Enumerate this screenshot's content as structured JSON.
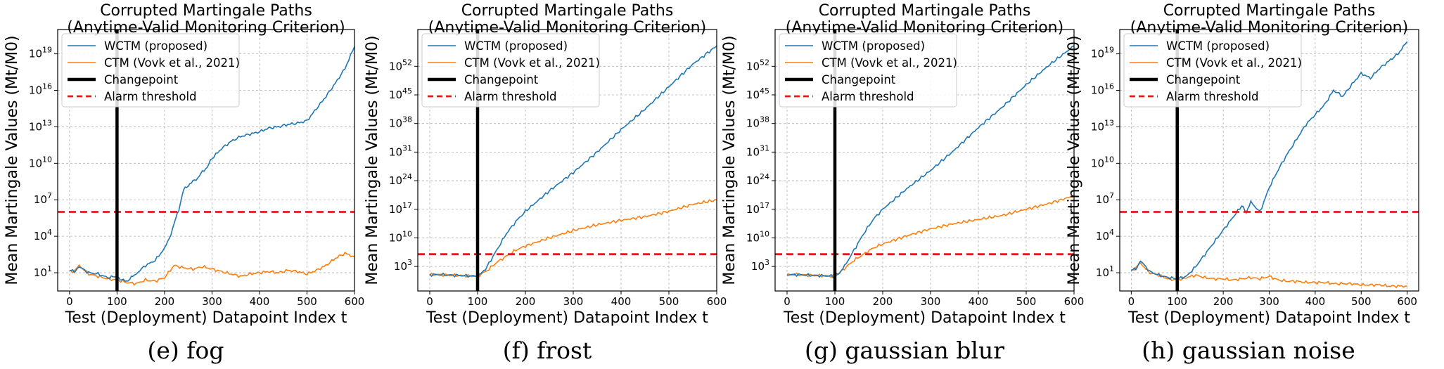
{
  "colors": {
    "wctm": "#1f77b4",
    "ctm": "#ff7f0e",
    "changepoint": "#000000",
    "alarm": "#e31a1c",
    "grid": "#b0b0b0"
  },
  "legend": {
    "wctm": "WCTM (proposed)",
    "ctm": "CTM (Vovk et al., 2021)",
    "changepoint": "Changepoint",
    "alarm": "Alarm threshold"
  },
  "chart_data": [
    {
      "type": "line",
      "caption": "(e) fog",
      "title_line1": "Corrupted Martingale Paths",
      "title_line2": "(Anytime-Valid Monitoring Criterion)",
      "xlabel": "Test (Deployment) Datapoint Index t",
      "ylabel": "Mean Martingale Values (Mt/M0)",
      "log_y": true,
      "grid": true,
      "legend_position": "upper left",
      "xlim": [
        -25,
        600
      ],
      "ylim_log10": [
        -0.5,
        21
      ],
      "xticks": [
        0,
        100,
        200,
        300,
        400,
        500,
        600
      ],
      "yticks_exp": [
        1,
        4,
        7,
        10,
        13,
        16,
        19
      ],
      "changepoint_x": 100,
      "alarm_threshold_log10": 6,
      "series": [
        {
          "name": "WCTM (proposed)",
          "x": [
            0,
            10,
            20,
            40,
            60,
            80,
            100,
            110,
            120,
            130,
            140,
            160,
            180,
            200,
            210,
            220,
            230,
            240,
            250,
            260,
            270,
            280,
            290,
            300,
            320,
            340,
            360,
            380,
            400,
            420,
            440,
            460,
            480,
            500,
            520,
            540,
            560,
            580,
            600
          ],
          "log10": [
            1.2,
            1.1,
            1.5,
            1.0,
            0.9,
            0.6,
            0.7,
            0.4,
            0.3,
            0.6,
            0.9,
            1.6,
            2.0,
            3.0,
            3.8,
            5.0,
            6.2,
            7.8,
            8.2,
            8.5,
            8.8,
            9.3,
            9.7,
            10.4,
            11.2,
            11.8,
            12.2,
            12.4,
            12.6,
            12.9,
            13.0,
            13.2,
            13.3,
            13.5,
            14.5,
            15.5,
            16.6,
            17.8,
            19.6
          ]
        },
        {
          "name": "CTM (Vovk et al., 2021)",
          "x": [
            0,
            10,
            20,
            40,
            60,
            80,
            100,
            120,
            140,
            160,
            180,
            200,
            220,
            240,
            260,
            280,
            300,
            320,
            340,
            360,
            380,
            400,
            420,
            440,
            460,
            480,
            500,
            520,
            540,
            560,
            580,
            600
          ],
          "log10": [
            1.2,
            1.1,
            1.6,
            0.9,
            0.7,
            0.5,
            0.4,
            0.2,
            0.1,
            0.4,
            0.3,
            0.6,
            1.6,
            1.4,
            1.3,
            1.5,
            1.3,
            1.1,
            0.9,
            0.7,
            0.9,
            1.0,
            1.1,
            1.0,
            1.2,
            1.1,
            0.9,
            1.2,
            1.6,
            2.2,
            2.6,
            2.3
          ]
        }
      ]
    },
    {
      "type": "line",
      "caption": "(f) frost",
      "title_line1": "Corrupted Martingale Paths",
      "title_line2": "(Anytime-Valid Monitoring Criterion)",
      "xlabel": "Test (Deployment) Datapoint Index t",
      "ylabel": "Mean Martingale Values (Mt/M0)",
      "log_y": true,
      "grid": true,
      "legend_position": "upper left",
      "xlim": [
        -25,
        600
      ],
      "ylim_log10": [
        -3,
        61
      ],
      "xticks": [
        0,
        100,
        200,
        300,
        400,
        500,
        600
      ],
      "yticks_exp": [
        3,
        10,
        17,
        24,
        31,
        38,
        45,
        52
      ],
      "changepoint_x": 100,
      "alarm_threshold_log10": 6,
      "series": [
        {
          "name": "WCTM (proposed)",
          "x": [
            0,
            20,
            40,
            60,
            80,
            100,
            110,
            120,
            140,
            160,
            180,
            200,
            250,
            300,
            350,
            400,
            450,
            500,
            550,
            600
          ],
          "log10": [
            1.0,
            1.0,
            0.9,
            0.8,
            0.7,
            0.6,
            1.5,
            3.0,
            7.0,
            11.0,
            14.0,
            16.5,
            21.5,
            26.0,
            31.0,
            36.5,
            41.5,
            47.0,
            52.5,
            57.0
          ]
        },
        {
          "name": "CTM (Vovk et al., 2021)",
          "x": [
            0,
            20,
            40,
            60,
            80,
            100,
            120,
            140,
            160,
            180,
            200,
            250,
            300,
            350,
            400,
            450,
            500,
            550,
            600
          ],
          "log10": [
            1.0,
            1.0,
            0.9,
            0.8,
            0.7,
            0.6,
            2.0,
            4.0,
            5.5,
            7.0,
            8.0,
            10.0,
            11.8,
            13.2,
            14.3,
            15.2,
            16.5,
            18.2,
            19.3
          ]
        }
      ]
    },
    {
      "type": "line",
      "caption": "(g) gaussian blur",
      "title_line1": "Corrupted Martingale Paths",
      "title_line2": "(Anytime-Valid Monitoring Criterion)",
      "xlabel": "Test (Deployment) Datapoint Index t",
      "ylabel": "Mean Martingale Values (Mt/M0)",
      "log_y": true,
      "grid": true,
      "legend_position": "upper left",
      "xlim": [
        -25,
        600
      ],
      "ylim_log10": [
        -3,
        61
      ],
      "xticks": [
        0,
        100,
        200,
        300,
        400,
        500,
        600
      ],
      "yticks_exp": [
        3,
        10,
        17,
        24,
        31,
        38,
        45,
        52
      ],
      "changepoint_x": 100,
      "alarm_threshold_log10": 6,
      "series": [
        {
          "name": "WCTM (proposed)",
          "x": [
            0,
            20,
            40,
            60,
            80,
            100,
            110,
            120,
            140,
            160,
            180,
            200,
            250,
            300,
            350,
            400,
            450,
            500,
            550,
            600
          ],
          "log10": [
            1.0,
            1.0,
            0.9,
            0.8,
            0.7,
            0.6,
            1.5,
            3.0,
            7.0,
            11.0,
            14.5,
            17.0,
            22.0,
            26.5,
            31.5,
            37.0,
            42.0,
            47.5,
            52.5,
            57.0
          ]
        },
        {
          "name": "CTM (Vovk et al., 2021)",
          "x": [
            0,
            20,
            40,
            60,
            80,
            100,
            120,
            140,
            160,
            180,
            200,
            250,
            300,
            350,
            400,
            450,
            500,
            550,
            600
          ],
          "log10": [
            1.0,
            1.0,
            0.9,
            0.8,
            0.7,
            0.6,
            2.5,
            4.5,
            6.0,
            7.5,
            8.5,
            10.5,
            12.2,
            13.5,
            14.5,
            15.5,
            17.0,
            18.5,
            20.3
          ]
        }
      ]
    },
    {
      "type": "line",
      "caption": "(h) gaussian noise",
      "title_line1": "Corrupted Martingale Paths",
      "title_line2": "(Anytime-Valid Monitoring Criterion)",
      "xlabel": "Test (Deployment) Datapoint Index t",
      "ylabel": "Mean Martingale Values (Mt/M0)",
      "log_y": true,
      "grid": true,
      "legend_position": "upper left",
      "xlim": [
        -25,
        625
      ],
      "ylim_log10": [
        -0.5,
        21
      ],
      "xticks": [
        0,
        100,
        200,
        300,
        400,
        500,
        600
      ],
      "yticks_exp": [
        1,
        4,
        7,
        10,
        13,
        16,
        19
      ],
      "changepoint_x": 100,
      "alarm_threshold_log10": 6,
      "series": [
        {
          "name": "WCTM (proposed)",
          "x": [
            0,
            10,
            20,
            40,
            60,
            80,
            100,
            120,
            140,
            160,
            180,
            200,
            220,
            240,
            250,
            260,
            280,
            300,
            320,
            340,
            360,
            380,
            400,
            420,
            440,
            460,
            480,
            500,
            520,
            540,
            560,
            580,
            600
          ],
          "log10": [
            1.2,
            1.3,
            2.0,
            1.1,
            0.8,
            0.6,
            0.5,
            0.7,
            1.5,
            2.5,
            3.5,
            4.5,
            5.5,
            6.5,
            6.0,
            6.8,
            6.0,
            8.0,
            9.5,
            10.8,
            12.0,
            13.2,
            14.0,
            14.8,
            16.0,
            15.5,
            16.5,
            17.4,
            17.0,
            17.8,
            18.4,
            19.0,
            20.0
          ]
        },
        {
          "name": "CTM (Vovk et al., 2021)",
          "x": [
            0,
            10,
            20,
            40,
            60,
            80,
            100,
            120,
            140,
            160,
            180,
            200,
            220,
            240,
            260,
            280,
            300,
            320,
            340,
            360,
            380,
            400,
            420,
            440,
            460,
            480,
            500,
            520,
            540,
            560,
            580,
            600
          ],
          "log10": [
            1.2,
            1.4,
            1.8,
            1.0,
            0.8,
            0.5,
            0.4,
            0.6,
            0.8,
            0.6,
            0.5,
            0.5,
            0.4,
            0.5,
            0.6,
            0.5,
            0.7,
            0.4,
            0.3,
            0.3,
            0.2,
            0.2,
            0.2,
            0.1,
            0.1,
            0.1,
            0.0,
            0.0,
            0.0,
            -0.1,
            -0.1,
            -0.1
          ]
        }
      ]
    }
  ]
}
